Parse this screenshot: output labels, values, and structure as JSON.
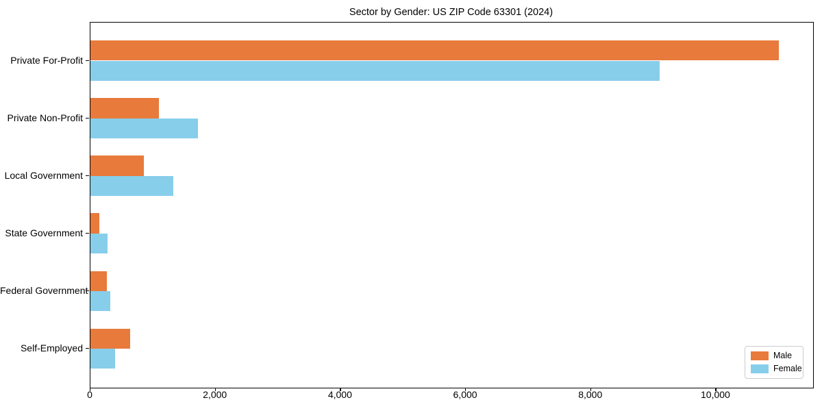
{
  "chart_data": {
    "type": "bar",
    "orientation": "horizontal",
    "title": "Sector by Gender: US ZIP Code 63301 (2024)",
    "categories": [
      "Private For-Profit",
      "Private Non-Profit",
      "Local Government",
      "State Government",
      "Federal Government",
      "Self-Employed"
    ],
    "series": [
      {
        "name": "Male",
        "color": "#E87A3B",
        "values": [
          11000,
          1090,
          850,
          140,
          260,
          640
        ]
      },
      {
        "name": "Female",
        "color": "#87CEEB",
        "values": [
          9100,
          1720,
          1320,
          270,
          315,
          390
        ]
      }
    ],
    "xlabel": "",
    "ylabel": "",
    "xlim": [
      0,
      11550
    ],
    "x_ticks": [
      0,
      2000,
      4000,
      6000,
      8000,
      10000
    ],
    "x_tick_labels": [
      "0",
      "2,000",
      "4,000",
      "6,000",
      "8,000",
      "10,000"
    ],
    "grid": false,
    "legend_position": "lower right",
    "background": "#ffffff",
    "spine_color": "#000000"
  }
}
